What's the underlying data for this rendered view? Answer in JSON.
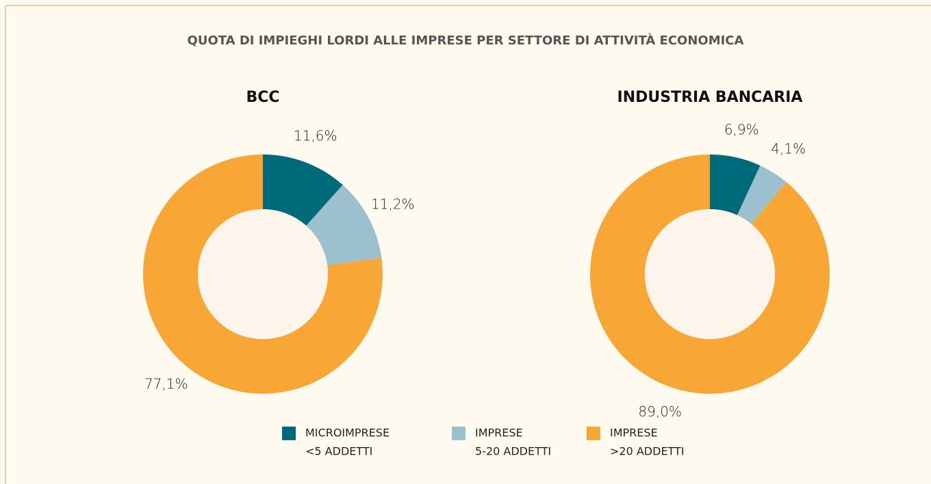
{
  "title": "QUOTA DI IMPIEGHI LORDI ALLE IMPRESE PER SETTORE DI ATTIVITÀ ECONOMICA",
  "categories": [
    [
      "MICROIMPRESE",
      "<5 ADDETTI"
    ],
    [
      "IMPRESE",
      "5-20 ADDETTI"
    ],
    [
      "IMPRESE",
      ">20 ADDETTI"
    ]
  ],
  "colors": [
    "#006a7b",
    "#9cc0cd",
    "#f8a736"
  ],
  "chart_data": [
    {
      "type": "donut",
      "title": "BCC",
      "values": [
        11.6,
        11.2,
        77.1
      ],
      "value_labels": [
        "11,6%",
        "11,2%",
        "77,1%"
      ]
    },
    {
      "type": "donut",
      "title": "INDUSTRIA BANCARIA",
      "values": [
        6.9,
        4.1,
        89.0
      ],
      "value_labels": [
        "6,9%",
        "4,1%",
        "89,0%"
      ]
    }
  ]
}
